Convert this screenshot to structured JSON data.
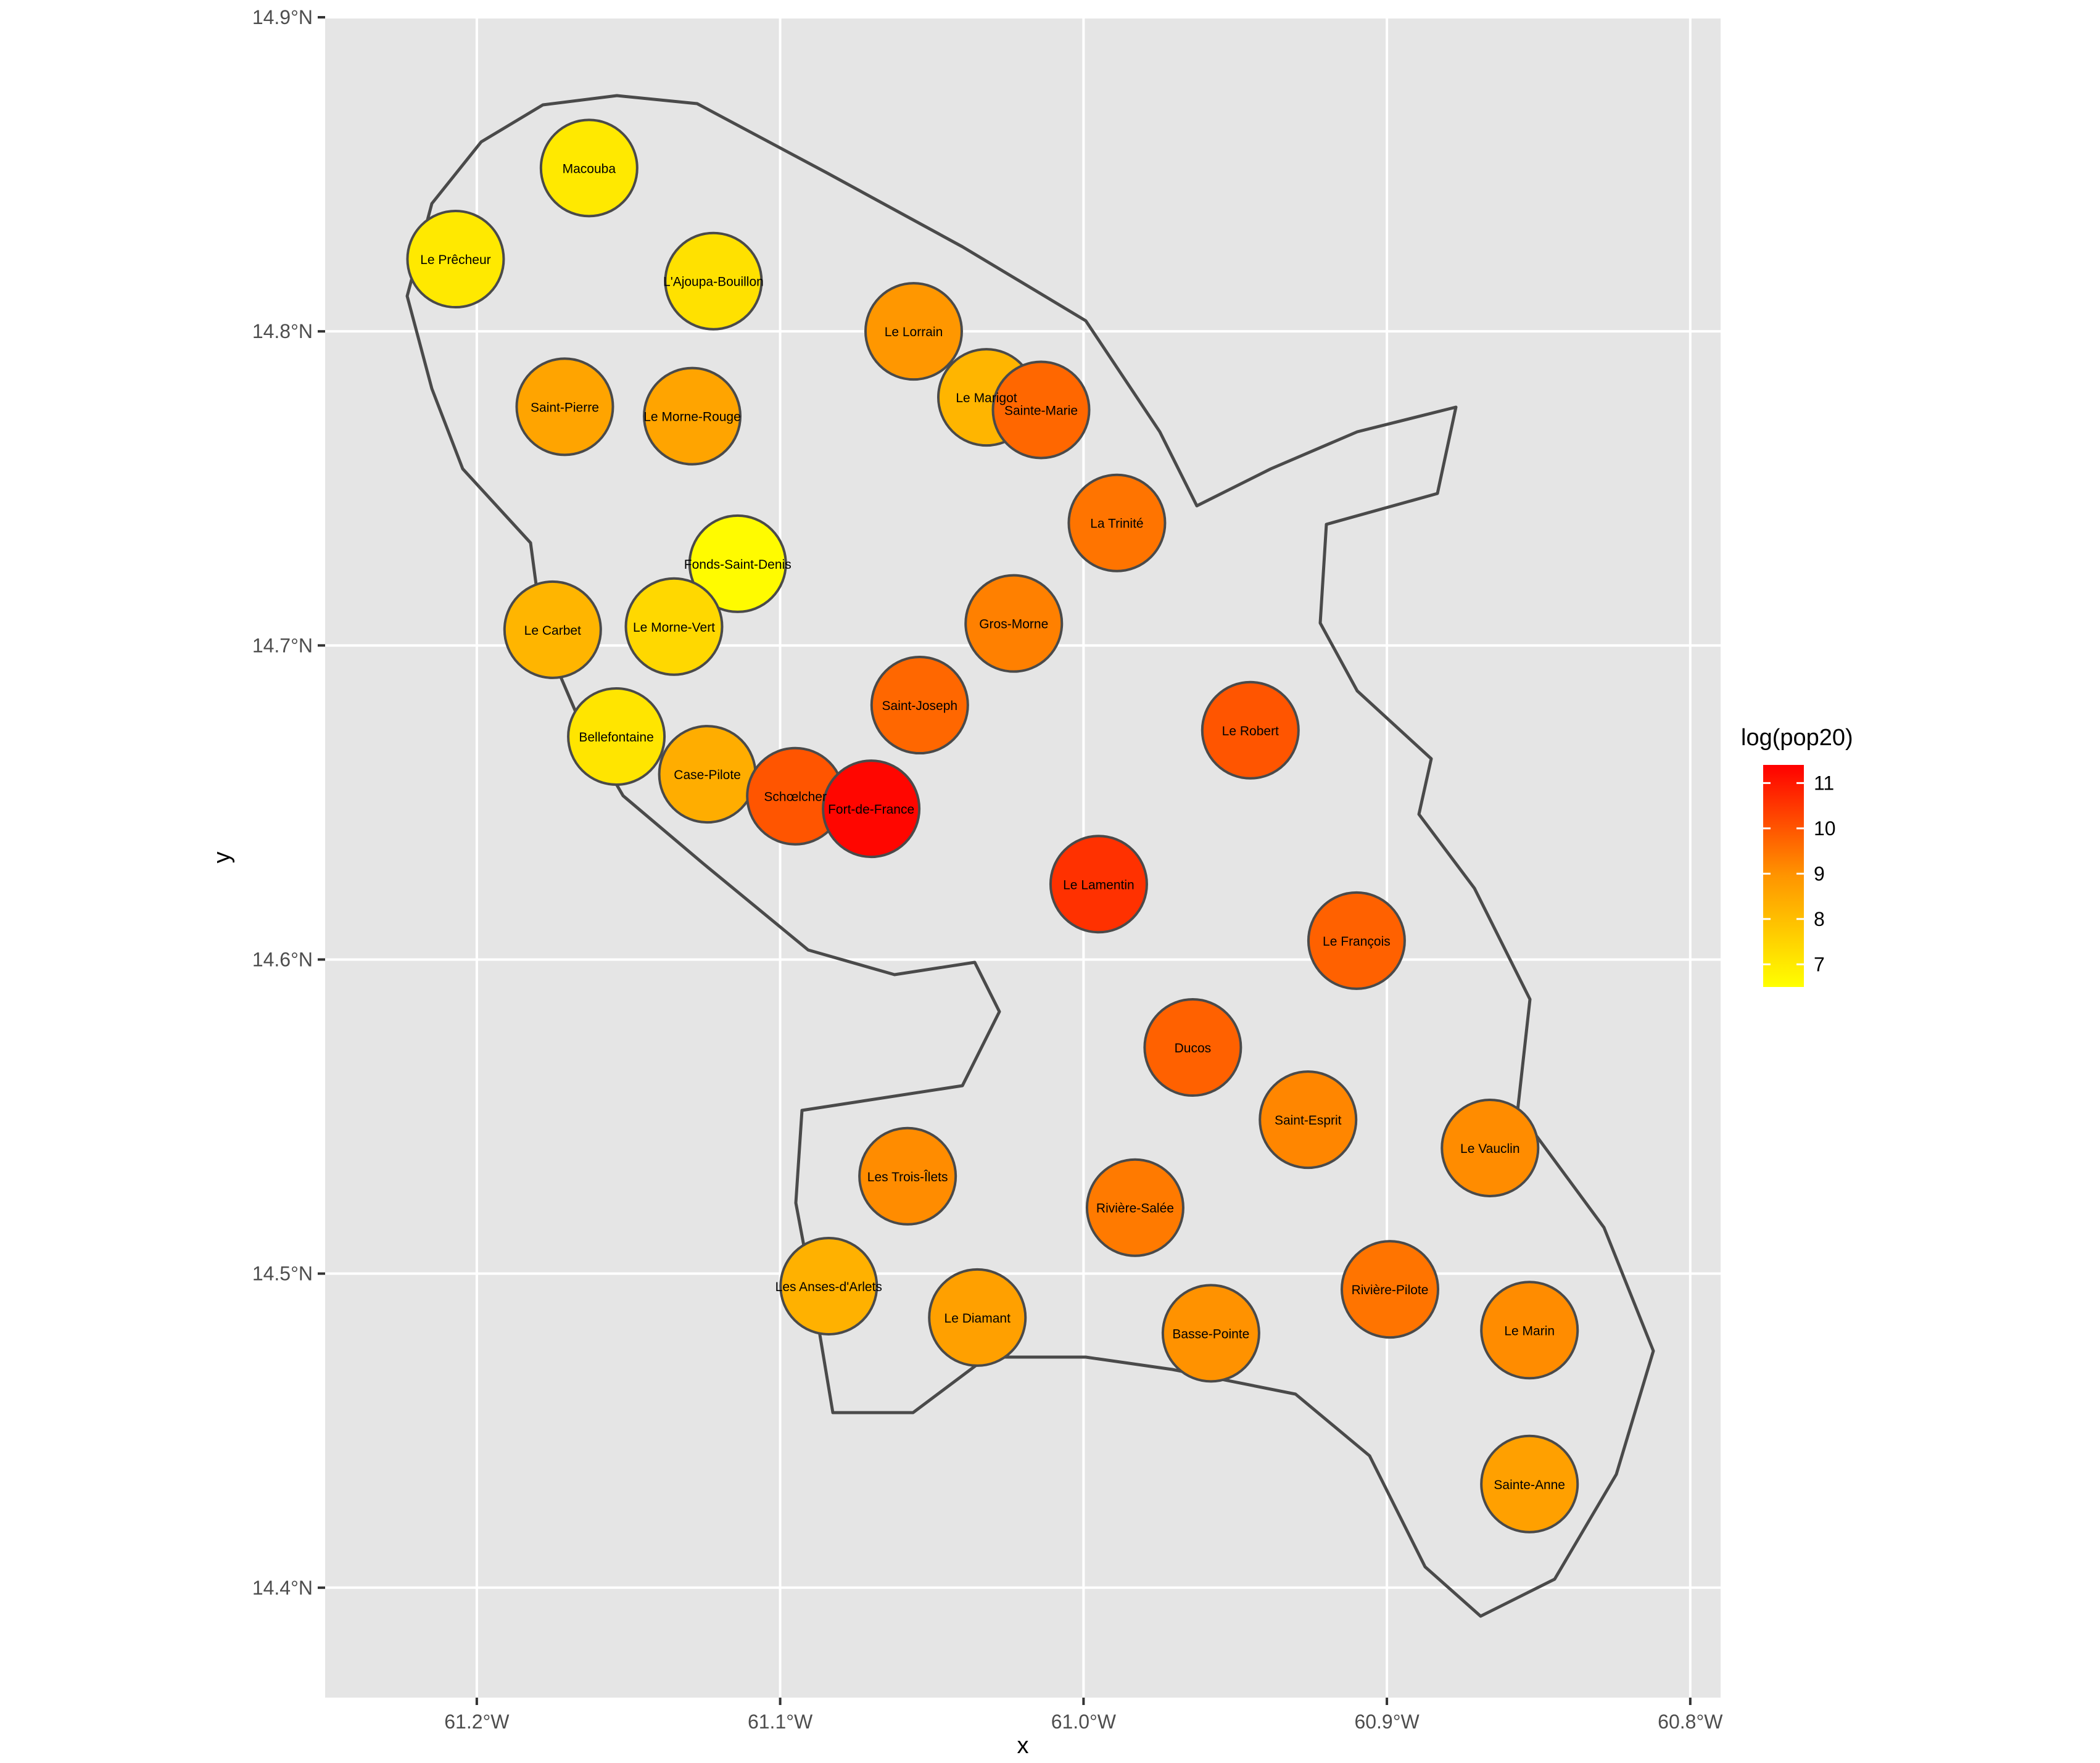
{
  "chart_data": {
    "type": "choropleth",
    "xlabel": "x",
    "ylabel": "y",
    "x_ticks": [
      {
        "lon": -61.2,
        "label": "61.2°W"
      },
      {
        "lon": -61.1,
        "label": "61.1°W"
      },
      {
        "lon": -61.0,
        "label": "61.0°W"
      },
      {
        "lon": -60.9,
        "label": "60.9°W"
      },
      {
        "lon": -60.8,
        "label": "60.8°W"
      }
    ],
    "y_ticks": [
      {
        "lat": 14.9,
        "label": "14.9°N"
      },
      {
        "lat": 14.8,
        "label": "14.8°N"
      },
      {
        "lat": 14.7,
        "label": "14.7°N"
      },
      {
        "lat": 14.6,
        "label": "14.6°N"
      },
      {
        "lat": 14.5,
        "label": "14.5°N"
      },
      {
        "lat": 14.4,
        "label": "14.4°N"
      }
    ],
    "xlim": [
      -61.25,
      -60.79
    ],
    "ylim": [
      14.365,
      14.9
    ],
    "grid": true,
    "legend": {
      "title": "log(pop20)",
      "position": "right",
      "range": [
        6.5,
        11.4
      ],
      "ticks": [
        7,
        8,
        9,
        10,
        11
      ],
      "color_low": "#FFFF00",
      "color_high": "#FF0000"
    },
    "colors": {
      "panel": "#E5E5E5",
      "grid": "#FFFFFF",
      "border": "#4A4A4A",
      "axis_text": "#4D4D4D"
    },
    "regions": [
      {
        "name": "Macouba",
        "value": 7.0,
        "lon": -61.163,
        "lat": 14.852
      },
      {
        "name": "Le Prêcheur",
        "value": 7.0,
        "lon": -61.207,
        "lat": 14.823
      },
      {
        "name": "L'Ajoupa-Bouillon",
        "value": 7.2,
        "lon": -61.122,
        "lat": 14.816
      },
      {
        "name": "Le Lorrain",
        "value": 8.9,
        "lon": -61.056,
        "lat": 14.8
      },
      {
        "name": "Le Marigot",
        "value": 8.2,
        "lon": -61.032,
        "lat": 14.779
      },
      {
        "name": "Sainte-Marie",
        "value": 9.7,
        "lon": -61.014,
        "lat": 14.775
      },
      {
        "name": "Saint-Pierre",
        "value": 8.6,
        "lon": -61.171,
        "lat": 14.776
      },
      {
        "name": "Le Morne-Rouge",
        "value": 8.6,
        "lon": -61.129,
        "lat": 14.773
      },
      {
        "name": "La Trinité",
        "value": 9.5,
        "lon": -60.989,
        "lat": 14.739
      },
      {
        "name": "Fonds-Saint-Denis",
        "value": 6.6,
        "lon": -61.114,
        "lat": 14.726
      },
      {
        "name": "Gros-Morne",
        "value": 9.3,
        "lon": -61.023,
        "lat": 14.707
      },
      {
        "name": "Le Carbet",
        "value": 8.2,
        "lon": -61.175,
        "lat": 14.705
      },
      {
        "name": "Le Morne-Vert",
        "value": 7.4,
        "lon": -61.135,
        "lat": 14.706
      },
      {
        "name": "Saint-Joseph",
        "value": 9.7,
        "lon": -61.054,
        "lat": 14.681
      },
      {
        "name": "Le Robert",
        "value": 10.0,
        "lon": -60.945,
        "lat": 14.673
      },
      {
        "name": "Bellefontaine",
        "value": 7.1,
        "lon": -61.154,
        "lat": 14.671
      },
      {
        "name": "Case-Pilote",
        "value": 8.4,
        "lon": -61.124,
        "lat": 14.659
      },
      {
        "name": "Schœlcher",
        "value": 10.0,
        "lon": -61.095,
        "lat": 14.652
      },
      {
        "name": "Fort-de-France",
        "value": 11.3,
        "lon": -61.07,
        "lat": 14.648
      },
      {
        "name": "Le Lamentin",
        "value": 10.6,
        "lon": -60.995,
        "lat": 14.624
      },
      {
        "name": "Le François",
        "value": 9.8,
        "lon": -60.91,
        "lat": 14.606
      },
      {
        "name": "Ducos",
        "value": 9.8,
        "lon": -60.964,
        "lat": 14.572
      },
      {
        "name": "Saint-Esprit",
        "value": 9.2,
        "lon": -60.926,
        "lat": 14.549
      },
      {
        "name": "Le Vauclin",
        "value": 9.1,
        "lon": -60.866,
        "lat": 14.54
      },
      {
        "name": "Les Trois-Îlets",
        "value": 9.1,
        "lon": -61.058,
        "lat": 14.531
      },
      {
        "name": "Rivière-Salée",
        "value": 9.4,
        "lon": -60.983,
        "lat": 14.521
      },
      {
        "name": "Les Anses-d'Arlets",
        "value": 8.3,
        "lon": -61.084,
        "lat": 14.496
      },
      {
        "name": "Rivière-Pilote",
        "value": 9.5,
        "lon": -60.899,
        "lat": 14.495
      },
      {
        "name": "Le Diamant",
        "value": 8.7,
        "lon": -61.035,
        "lat": 14.486
      },
      {
        "name": "Basse-Pointe",
        "value": 9.0,
        "lon": -60.958,
        "lat": 14.481
      },
      {
        "name": "Le Marin",
        "value": 9.1,
        "lon": -60.853,
        "lat": 14.482
      },
      {
        "name": "Sainte-Anne",
        "value": 8.7,
        "lon": -60.853,
        "lat": 14.433
      }
    ]
  }
}
